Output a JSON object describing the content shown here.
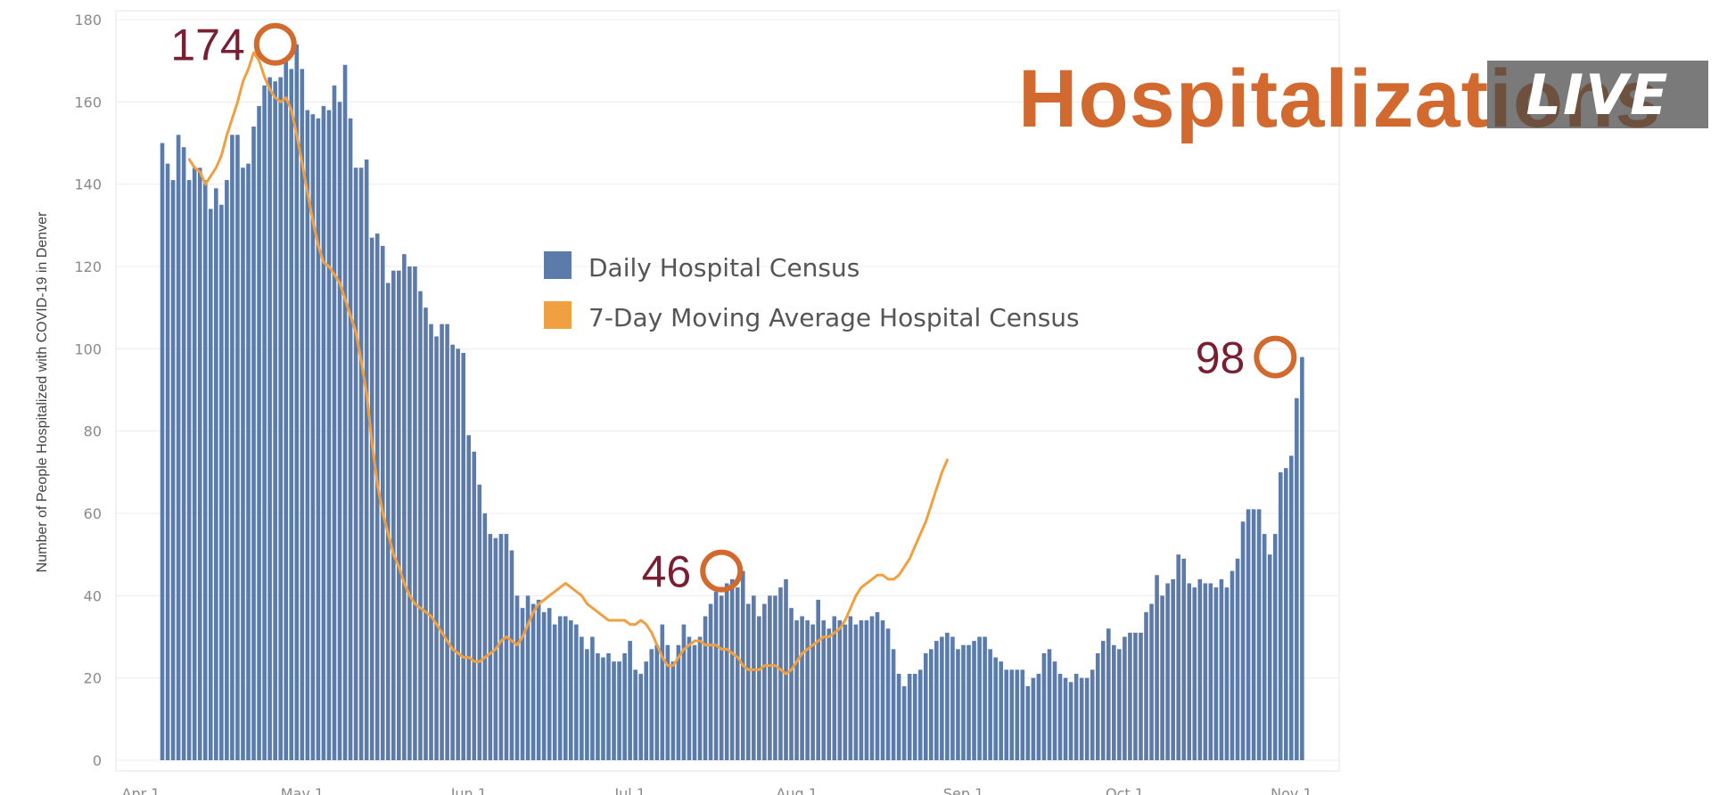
{
  "title": "Hospitalizations",
  "live_badge": "LIVE",
  "chart_data": {
    "type": "bar",
    "ylabel": "Number of People Hospitalized with COVID-19 in Denver",
    "xlabel": "",
    "ylim": [
      0,
      180
    ],
    "yticks": [
      0,
      20,
      40,
      60,
      80,
      100,
      120,
      140,
      160,
      180
    ],
    "x_start_date": "Apr 1",
    "xticks": [
      {
        "label": "Apr 1",
        "day": 0
      },
      {
        "label": "May 1",
        "day": 30
      },
      {
        "label": "Jun 1",
        "day": 61
      },
      {
        "label": "Jul 1",
        "day": 91
      },
      {
        "label": "Aug 1",
        "day": 122
      },
      {
        "label": "Sep 1",
        "day": 153
      },
      {
        "label": "Oct 1",
        "day": 183
      },
      {
        "label": "Nov 1",
        "day": 214
      }
    ],
    "grid": true,
    "legend_position": "center",
    "series": [
      {
        "name": "Daily Hospital Census",
        "type": "bar",
        "color": "#5b7bab",
        "first_day": 4,
        "values": [
          150,
          145,
          141,
          152,
          149,
          141,
          144,
          144,
          141,
          134,
          139,
          135,
          141,
          152,
          152,
          144,
          145,
          154,
          159,
          164,
          166,
          165,
          166,
          170,
          168,
          174,
          168,
          158,
          157,
          156,
          159,
          158,
          164,
          160,
          169,
          156,
          144,
          144,
          146,
          127,
          128,
          125,
          116,
          119,
          119,
          123,
          120,
          120,
          114,
          110,
          106,
          103,
          106,
          106,
          101,
          100,
          99,
          79,
          75,
          67,
          60,
          55,
          54,
          55,
          55,
          51,
          40,
          37,
          40,
          38,
          39,
          36,
          37,
          33,
          35,
          35,
          34,
          33,
          30,
          27,
          30,
          26,
          25,
          26,
          24,
          24,
          26,
          29,
          22,
          21,
          24,
          27,
          28,
          33,
          28,
          24,
          28,
          33,
          30,
          28,
          30,
          35,
          38,
          41,
          40,
          43,
          44,
          42,
          46,
          38,
          40,
          35,
          38,
          40,
          40,
          42,
          44,
          37,
          34,
          35,
          34,
          33,
          39,
          34,
          32,
          35,
          34,
          33,
          35,
          33,
          34,
          34,
          35,
          36,
          34,
          32,
          27,
          21,
          18,
          21,
          21,
          22,
          26,
          27,
          29,
          30,
          31,
          30,
          27,
          28,
          28,
          29,
          30,
          30,
          27,
          25,
          24,
          22,
          22,
          22,
          22,
          18,
          20,
          21,
          26,
          27,
          24,
          21,
          20,
          19,
          21,
          20,
          20,
          22,
          26,
          29,
          32,
          28,
          27,
          30,
          31,
          31,
          31,
          36,
          38,
          45,
          40,
          43,
          44,
          50,
          49,
          43,
          42,
          44,
          43,
          43,
          42,
          44,
          42,
          46,
          49,
          58,
          61,
          61,
          61,
          55,
          50,
          55,
          70,
          71,
          74,
          88,
          98
        ]
      },
      {
        "name": "7-Day Moving Average Hospital Census",
        "type": "line",
        "color": "#f0a040",
        "first_day": 9,
        "values": [
          146,
          144,
          143,
          140,
          142,
          144,
          147,
          152,
          156,
          160,
          165,
          168,
          172,
          170,
          166,
          163,
          161,
          160,
          161,
          158,
          152,
          145,
          138,
          131,
          125,
          121,
          120,
          118,
          116,
          112,
          108,
          104,
          97,
          89,
          77,
          67,
          60,
          55,
          50,
          47,
          43,
          40,
          38,
          37,
          36,
          35,
          33,
          31,
          29,
          27,
          26,
          25,
          25,
          24,
          24,
          25,
          26,
          27,
          29,
          30,
          29,
          28,
          30,
          33,
          36,
          38,
          39,
          40,
          41,
          42,
          43,
          42,
          41,
          40,
          38,
          37,
          36,
          35,
          34,
          34,
          34,
          34,
          33,
          33,
          34,
          33,
          31,
          28,
          25,
          23,
          23,
          25,
          27,
          28,
          29,
          29,
          28,
          28,
          28,
          27,
          27,
          26,
          25,
          23,
          22,
          22,
          22,
          23,
          23,
          23,
          22,
          21,
          22,
          24,
          26,
          27,
          28,
          29,
          30,
          30,
          31,
          32,
          34,
          37,
          40,
          42,
          43,
          44,
          45,
          45,
          44,
          44,
          45,
          47,
          49,
          52,
          55,
          58,
          62,
          66,
          70,
          73
        ]
      }
    ],
    "annotations": [
      {
        "label": "174",
        "day": 25,
        "value": 174
      },
      {
        "label": "46",
        "day": 108,
        "value": 46
      },
      {
        "label": "98",
        "day": 211,
        "value": 98
      }
    ]
  }
}
